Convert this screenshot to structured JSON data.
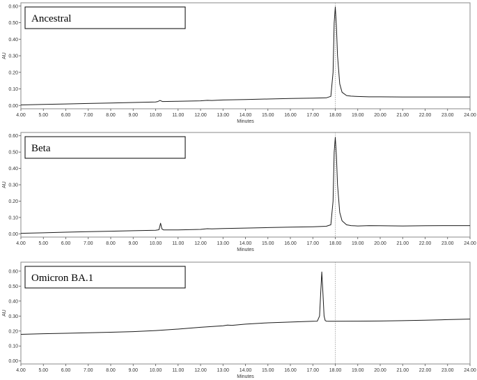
{
  "chart_data": [
    {
      "type": "line",
      "label": "Ancestral",
      "xlabel": "Minutes",
      "ylabel": "AU",
      "xlim": [
        4.0,
        24.0
      ],
      "ylim": [
        -0.02,
        0.62
      ],
      "xticks": [
        "4.00",
        "5.00",
        "6.00",
        "7.00",
        "8.00",
        "9.00",
        "10.00",
        "11.00",
        "12.00",
        "13.00",
        "14.00",
        "15.00",
        "16.00",
        "17.00",
        "18.00",
        "19.00",
        "20.00",
        "21.00",
        "22.00",
        "23.00",
        "24.00"
      ],
      "yticks": [
        "0.00",
        "0.10",
        "0.20",
        "0.30",
        "0.40",
        "0.50",
        "0.60"
      ],
      "series": [
        {
          "x": [
            4.0,
            5.0,
            6.0,
            7.0,
            8.0,
            9.0,
            10.0,
            10.1,
            10.2,
            10.3,
            11.0,
            12.0,
            12.3,
            12.5,
            13.0,
            14.0,
            15.0,
            16.0,
            17.0,
            17.6,
            17.8,
            17.9,
            17.95,
            18.0,
            18.05,
            18.1,
            18.2,
            18.3,
            18.5,
            18.7,
            19.0,
            19.5,
            20.0,
            21.0,
            22.0,
            23.0,
            24.0
          ],
          "y": [
            0.003,
            0.006,
            0.009,
            0.012,
            0.015,
            0.018,
            0.021,
            0.024,
            0.03,
            0.024,
            0.025,
            0.028,
            0.031,
            0.03,
            0.033,
            0.036,
            0.039,
            0.042,
            0.044,
            0.046,
            0.055,
            0.2,
            0.5,
            0.595,
            0.48,
            0.3,
            0.13,
            0.08,
            0.06,
            0.056,
            0.054,
            0.052,
            0.052,
            0.051,
            0.051,
            0.051,
            0.051
          ]
        }
      ]
    },
    {
      "type": "line",
      "label": "Beta",
      "xlabel": "Minutes",
      "ylabel": "AU",
      "xlim": [
        4.0,
        24.0
      ],
      "ylim": [
        -0.02,
        0.62
      ],
      "xticks": [
        "4.00",
        "5.00",
        "6.00",
        "7.00",
        "8.00",
        "9.00",
        "10.00",
        "11.00",
        "12.00",
        "13.00",
        "14.00",
        "15.00",
        "16.00",
        "17.00",
        "18.00",
        "19.00",
        "20.00",
        "21.00",
        "22.00",
        "23.00",
        "24.00"
      ],
      "yticks": [
        "0.00",
        "0.10",
        "0.20",
        "0.30",
        "0.40",
        "0.50",
        "0.60"
      ],
      "series": [
        {
          "x": [
            4.0,
            5.0,
            6.0,
            7.0,
            8.0,
            9.0,
            10.0,
            10.15,
            10.22,
            10.28,
            10.35,
            11.0,
            12.0,
            12.3,
            12.5,
            13.0,
            14.0,
            15.0,
            16.0,
            17.0,
            17.6,
            17.8,
            17.9,
            17.95,
            18.0,
            18.05,
            18.1,
            18.2,
            18.3,
            18.5,
            18.7,
            19.0,
            19.5,
            20.0,
            21.0,
            22.0,
            23.0,
            24.0
          ],
          "y": [
            0.003,
            0.006,
            0.01,
            0.013,
            0.016,
            0.019,
            0.022,
            0.025,
            0.065,
            0.03,
            0.024,
            0.024,
            0.027,
            0.031,
            0.03,
            0.032,
            0.035,
            0.038,
            0.041,
            0.043,
            0.046,
            0.055,
            0.2,
            0.5,
            0.59,
            0.48,
            0.3,
            0.13,
            0.08,
            0.055,
            0.05,
            0.048,
            0.05,
            0.049,
            0.048,
            0.049,
            0.05,
            0.05
          ]
        }
      ]
    },
    {
      "type": "line",
      "label": "Omicron BA.1",
      "xlabel": "Minutes",
      "ylabel": "AU",
      "xlim": [
        4.0,
        24.0
      ],
      "ylim": [
        -0.02,
        0.66
      ],
      "xticks": [
        "4.00",
        "5.00",
        "6.00",
        "7.00",
        "8.00",
        "9.00",
        "10.00",
        "11.00",
        "12.00",
        "13.00",
        "14.00",
        "15.00",
        "16.00",
        "17.00",
        "18.00",
        "19.00",
        "20.00",
        "21.00",
        "22.00",
        "23.00",
        "24.00"
      ],
      "yticks": [
        "0.00",
        "0.10",
        "0.20",
        "0.30",
        "0.40",
        "0.50",
        "0.60"
      ],
      "series": [
        {
          "x": [
            4.0,
            5.0,
            6.0,
            7.0,
            8.0,
            9.0,
            10.0,
            11.0,
            12.0,
            13.0,
            13.2,
            13.4,
            14.0,
            15.0,
            16.0,
            17.0,
            17.2,
            17.3,
            17.35,
            17.4,
            17.45,
            17.5,
            17.55,
            17.6,
            17.7,
            18.0,
            19.0,
            20.0,
            21.0,
            22.0,
            23.0,
            24.0
          ],
          "y": [
            0.178,
            0.182,
            0.185,
            0.188,
            0.192,
            0.196,
            0.203,
            0.213,
            0.225,
            0.235,
            0.24,
            0.238,
            0.246,
            0.255,
            0.26,
            0.265,
            0.266,
            0.3,
            0.45,
            0.595,
            0.45,
            0.3,
            0.27,
            0.266,
            0.265,
            0.265,
            0.266,
            0.267,
            0.269,
            0.272,
            0.276,
            0.28
          ]
        }
      ]
    }
  ]
}
